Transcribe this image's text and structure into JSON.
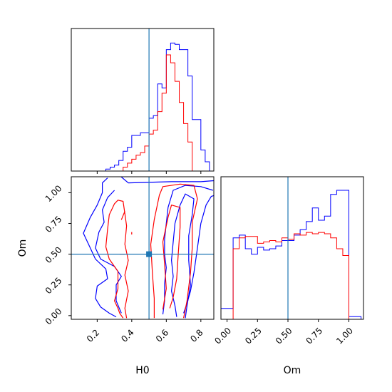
{
  "chart_data": {
    "type": "corner",
    "parameters": [
      "H0",
      "Om"
    ],
    "truth": {
      "H0": 0.5,
      "Om": 0.5
    },
    "colors": {
      "blue": "#0000ff",
      "red": "#ff0000",
      "truth": "#1f77b4",
      "axis": "#000000"
    },
    "panels": [
      {
        "id": "hist-H0",
        "type": "step-histogram",
        "parameter": "H0",
        "xlim": [
          0.05,
          0.875
        ],
        "x_ticks": [
          0.2,
          0.4,
          0.6,
          0.8
        ],
        "show_tick_labels": false,
        "ylim": [
          0,
          1.08
        ],
        "bin_edges": [
          0.0,
          0.025,
          0.05,
          0.075,
          0.1,
          0.125,
          0.15,
          0.175,
          0.2,
          0.225,
          0.25,
          0.275,
          0.3,
          0.325,
          0.35,
          0.375,
          0.4,
          0.425,
          0.45,
          0.475,
          0.5,
          0.525,
          0.55,
          0.575,
          0.6,
          0.625,
          0.65,
          0.675,
          0.7,
          0.725,
          0.75,
          0.775,
          0.8,
          0.825,
          0.85,
          0.875
        ],
        "series": [
          {
            "name": "",
            "color": "blue",
            "values": [
              0,
              0,
              0,
              0,
              0,
              0,
              0,
              0,
              0,
              0,
              0.015,
              0.03,
              0.045,
              0.08,
              0.15,
              0.18,
              0.27,
              0.27,
              0.29,
              0.29,
              0.4,
              0.42,
              0.66,
              0.63,
              0.92,
              0.97,
              0.96,
              0.92,
              0.92,
              0.72,
              0.39,
              0.39,
              0.16,
              0.07,
              0.0
            ]
          },
          {
            "name": "",
            "color": "red",
            "values": [
              0,
              0,
              0,
              0,
              0,
              0,
              0,
              0,
              0,
              0,
              0,
              0,
              0,
              0,
              0.03,
              0.06,
              0.09,
              0.12,
              0.14,
              0.19,
              0.28,
              0.31,
              0.45,
              0.59,
              0.88,
              0.82,
              0.68,
              0.52,
              0.36,
              0.22,
              0.0,
              0.0,
              0.0,
              0.0,
              0.0
            ]
          }
        ]
      },
      {
        "id": "contour-H0-Om",
        "type": "contour",
        "xlabel": "H0",
        "ylabel": "Om",
        "xlim": [
          0.05,
          0.875
        ],
        "ylim": [
          -0.03,
          1.13
        ],
        "x_ticks": [
          0.2,
          0.4,
          0.6,
          0.8
        ],
        "x_tick_labels": [
          "0.2",
          "0.4",
          "0.6",
          "0.8"
        ],
        "y_ticks": [
          0.0,
          0.25,
          0.5,
          0.75,
          1.0
        ],
        "y_tick_labels": [
          "0.00",
          "0.25",
          "0.50",
          "0.75",
          "1.00"
        ],
        "series": [
          {
            "name": "",
            "color": "blue",
            "contours": [
              [
                [
                  0.31,
                  -0.01
                ],
                [
                  0.27,
                  0.02
                ],
                [
                  0.22,
                  0.07
                ],
                [
                  0.19,
                  0.14
                ],
                [
                  0.2,
                  0.24
                ],
                [
                  0.26,
                  0.3
                ],
                [
                  0.25,
                  0.38
                ],
                [
                  0.19,
                  0.46
                ],
                [
                  0.16,
                  0.55
                ],
                [
                  0.12,
                  0.67
                ],
                [
                  0.16,
                  0.8
                ],
                [
                  0.2,
                  0.9
                ],
                [
                  0.23,
                  1.0
                ],
                [
                  0.23,
                  1.08
                ],
                [
                  0.26,
                  1.12
                ]
              ],
              [
                [
                  0.33,
                  1.14
                ],
                [
                  0.38,
                  1.08
                ],
                [
                  0.63,
                  1.09
                ],
                [
                  0.8,
                  1.09
                ],
                [
                  0.89,
                  1.1
                ]
              ],
              [
                [
                  0.34,
                  0.02
                ],
                [
                  0.31,
                  0.12
                ],
                [
                  0.31,
                  0.25
                ],
                [
                  0.34,
                  0.32
                ],
                [
                  0.3,
                  0.4
                ],
                [
                  0.22,
                  0.46
                ],
                [
                  0.19,
                  0.55
                ],
                [
                  0.21,
                  0.68
                ],
                [
                  0.24,
                  0.76
                ],
                [
                  0.23,
                  0.86
                ],
                [
                  0.26,
                  0.96
                ],
                [
                  0.3,
                  1.02
                ]
              ],
              [
                [
                  0.58,
                  0.01
                ],
                [
                  0.59,
                  0.12
                ],
                [
                  0.59,
                  0.26
                ],
                [
                  0.6,
                  0.39
                ],
                [
                  0.59,
                  0.5
                ],
                [
                  0.59,
                  0.62
                ],
                [
                  0.6,
                  0.75
                ],
                [
                  0.61,
                  0.88
                ],
                [
                  0.64,
                  1.02
                ],
                [
                  0.71,
                  1.06
                ],
                [
                  0.8,
                  1.05
                ],
                [
                  0.87,
                  1.02
                ]
              ],
              [
                [
                  0.66,
                  -0.01
                ],
                [
                  0.65,
                  0.08
                ],
                [
                  0.63,
                  0.2
                ],
                [
                  0.64,
                  0.32
                ],
                [
                  0.63,
                  0.45
                ],
                [
                  0.64,
                  0.6
                ],
                [
                  0.65,
                  0.75
                ],
                [
                  0.68,
                  0.9
                ],
                [
                  0.71,
                  0.99
                ],
                [
                  0.76,
                  0.95
                ],
                [
                  0.75,
                  0.82
                ],
                [
                  0.73,
                  0.65
                ],
                [
                  0.73,
                  0.45
                ],
                [
                  0.74,
                  0.25
                ],
                [
                  0.72,
                  0.08
                ],
                [
                  0.71,
                  -0.02
                ]
              ],
              [
                [
                  0.7,
                  0.02
                ],
                [
                  0.72,
                  0.1
                ],
                [
                  0.74,
                  0.2
                ],
                [
                  0.76,
                  0.35
                ],
                [
                  0.78,
                  0.55
                ],
                [
                  0.8,
                  0.75
                ],
                [
                  0.83,
                  0.9
                ],
                [
                  0.86,
                  0.97
                ],
                [
                  0.88,
                  0.98
                ]
              ]
            ]
          },
          {
            "name": "",
            "color": "red",
            "contours": [
              [
                [
                  0.35,
                  -0.02
                ],
                [
                  0.33,
                  0.02
                ],
                [
                  0.32,
                  0.06
                ],
                [
                  0.3,
                  0.12
                ],
                [
                  0.32,
                  0.22
                ],
                [
                  0.32,
                  0.36
                ],
                [
                  0.27,
                  0.46
                ],
                [
                  0.25,
                  0.56
                ],
                [
                  0.26,
                  0.7
                ],
                [
                  0.27,
                  0.82
                ],
                [
                  0.3,
                  0.91
                ],
                [
                  0.32,
                  0.94
                ],
                [
                  0.35,
                  0.93
                ],
                [
                  0.36,
                  0.83
                ],
                [
                  0.37,
                  0.73
                ],
                [
                  0.36,
                  0.58
                ],
                [
                  0.38,
                  0.45
                ],
                [
                  0.36,
                  0.33
                ],
                [
                  0.38,
                  0.2
                ],
                [
                  0.36,
                  0.06
                ],
                [
                  0.37,
                  -0.02
                ]
              ],
              [
                [
                  0.53,
                  -0.02
                ],
                [
                  0.53,
                  0.14
                ],
                [
                  0.52,
                  0.34
                ],
                [
                  0.51,
                  0.58
                ],
                [
                  0.53,
                  0.78
                ],
                [
                  0.56,
                  0.98
                ],
                [
                  0.58,
                  1.05
                ],
                [
                  0.68,
                  1.07
                ],
                [
                  0.76,
                  1.06
                ],
                [
                  0.78,
                  0.95
                ],
                [
                  0.75,
                  0.76
                ],
                [
                  0.75,
                  0.55
                ],
                [
                  0.74,
                  0.35
                ],
                [
                  0.72,
                  0.12
                ],
                [
                  0.7,
                  -0.02
                ]
              ],
              [
                [
                  0.58,
                  0.05
                ],
                [
                  0.6,
                  0.22
                ],
                [
                  0.59,
                  0.42
                ],
                [
                  0.58,
                  0.6
                ],
                [
                  0.61,
                  0.8
                ],
                [
                  0.63,
                  0.9
                ],
                [
                  0.68,
                  0.88
                ],
                [
                  0.68,
                  0.72
                ],
                [
                  0.67,
                  0.52
                ],
                [
                  0.66,
                  0.3
                ],
                [
                  0.64,
                  0.15
                ],
                [
                  0.62,
                  0.06
                ]
              ],
              [
                [
                  0.34,
                  0.78
                ],
                [
                  0.36,
                  0.85
                ]
              ],
              [
                [
                  0.33,
                  0.5
                ],
                [
                  0.36,
                  0.5
                ]
              ],
              [
                [
                  0.4,
                  0.68
                ],
                [
                  0.4,
                  0.66
                ]
              ]
            ]
          }
        ]
      },
      {
        "id": "hist-Om",
        "type": "step-histogram",
        "parameter": "Om",
        "xlabel": "Om",
        "xlim": [
          -0.05,
          1.12
        ],
        "ylim": [
          0,
          1.05
        ],
        "x_ticks": [
          0.0,
          0.25,
          0.5,
          0.75,
          1.0
        ],
        "x_tick_labels": [
          "0.00",
          "0.25",
          "0.50",
          "0.75",
          "1.00"
        ],
        "bin_edges": [
          -0.05,
          0.0,
          0.05,
          0.1,
          0.15,
          0.2,
          0.25,
          0.3,
          0.35,
          0.4,
          0.45,
          0.5,
          0.55,
          0.6,
          0.65,
          0.7,
          0.75,
          0.8,
          0.85,
          0.9,
          0.95,
          1.0,
          1.05,
          1.1
        ],
        "series": [
          {
            "name": "",
            "color": "blue",
            "values": [
              0.08,
              0.08,
              0.6,
              0.62,
              0.52,
              0.48,
              0.53,
              0.51,
              0.52,
              0.54,
              0.58,
              0.58,
              0.62,
              0.66,
              0.72,
              0.82,
              0.73,
              0.76,
              0.92,
              0.95,
              0.95,
              0.02,
              0.02
            ]
          },
          {
            "name": "",
            "color": "red",
            "values": [
              0.0,
              0.0,
              0.52,
              0.6,
              0.61,
              0.61,
              0.56,
              0.57,
              0.58,
              0.57,
              0.6,
              0.59,
              0.63,
              0.62,
              0.64,
              0.63,
              0.64,
              0.63,
              0.6,
              0.52,
              0.47,
              0.0,
              0.0
            ]
          }
        ]
      }
    ]
  }
}
